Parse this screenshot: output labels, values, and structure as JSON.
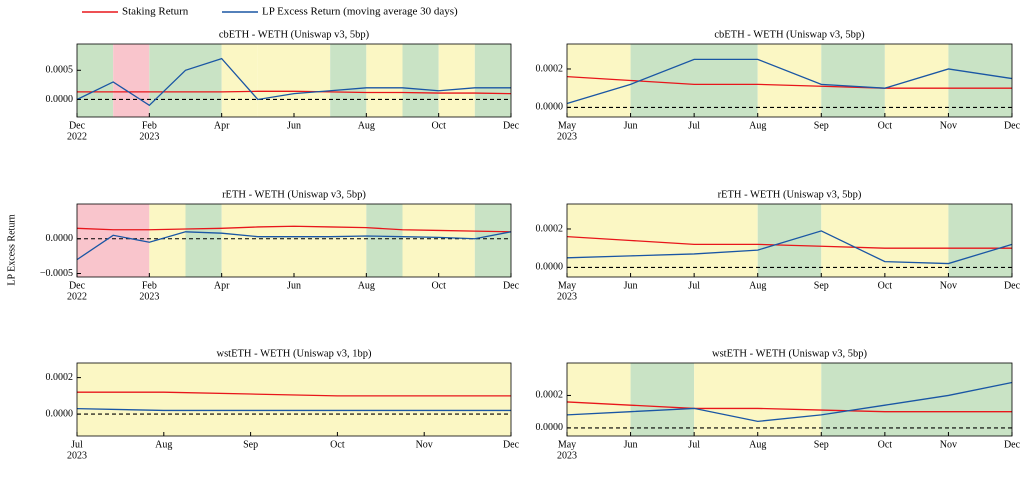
{
  "ylabel": "LP Excess Return",
  "chart_data": [
    {
      "type": "line",
      "title": "cbETH - WETH (Uniswap v3, 5bp)",
      "x": [
        "2022-12",
        "2023-01",
        "2023-02",
        "2023-03",
        "2023-04",
        "2023-05",
        "2023-06",
        "2023-07",
        "2023-08",
        "2023-09",
        "2023-10",
        "2023-11",
        "2023-12"
      ],
      "series": [
        {
          "name": "Staking Return",
          "color": "#e8161b",
          "values": [
            0.00013,
            0.00013,
            0.00013,
            0.00013,
            0.00013,
            0.00014,
            0.00014,
            0.00013,
            0.00012,
            0.00012,
            0.00011,
            0.00011,
            0.0001
          ]
        },
        {
          "name": "LP Excess Return (moving average 30 days)",
          "color": "#1a56a4",
          "values": [
            0.0,
            0.0003,
            -0.0001,
            0.0005,
            0.0007,
            0.0,
            0.0001,
            0.00015,
            0.0002,
            0.0002,
            0.00015,
            0.0002,
            0.0002
          ]
        }
      ],
      "bands": [
        {
          "start": "2022-12",
          "end": "2023-01",
          "color": "#c9e3c5"
        },
        {
          "start": "2023-01",
          "end": "2023-02",
          "color": "#f9c5cc"
        },
        {
          "start": "2023-02",
          "end": "2023-04",
          "color": "#c9e3c5"
        },
        {
          "start": "2023-04",
          "end": "2023-05",
          "color": "#fbf7c4"
        },
        {
          "start": "2023-05",
          "end": "2023-07",
          "color": "#fbf7c4"
        },
        {
          "start": "2023-07",
          "end": "2023-08",
          "color": "#c9e3c5"
        },
        {
          "start": "2023-08",
          "end": "2023-09",
          "color": "#fbf7c4"
        },
        {
          "start": "2023-09",
          "end": "2023-10",
          "color": "#c9e3c5"
        },
        {
          "start": "2023-10",
          "end": "2023-11",
          "color": "#fbf7c4"
        },
        {
          "start": "2023-11",
          "end": "2023-12",
          "color": "#c9e3c5"
        }
      ],
      "xlim": [
        "2022-12",
        "2023-12"
      ],
      "xticks": [
        {
          "value": "2022-12",
          "label": "Dec",
          "sublabel": "2022"
        },
        {
          "value": "2023-02",
          "label": "Feb",
          "sublabel": "2023"
        },
        {
          "value": "2023-04",
          "label": "Apr"
        },
        {
          "value": "2023-06",
          "label": "Jun"
        },
        {
          "value": "2023-08",
          "label": "Aug"
        },
        {
          "value": "2023-10",
          "label": "Oct"
        },
        {
          "value": "2023-12",
          "label": "Dec"
        }
      ],
      "ylim": [
        -0.0003,
        0.00095
      ],
      "yticks": [
        {
          "value": 0,
          "label": "0.0000"
        },
        {
          "value": 0.0005,
          "label": "0.0005"
        }
      ]
    },
    {
      "type": "line",
      "title": "cbETH - WETH (Uniswap v3, 5bp)",
      "x": [
        "2023-05",
        "2023-06",
        "2023-07",
        "2023-08",
        "2023-09",
        "2023-10",
        "2023-11",
        "2023-12"
      ],
      "series": [
        {
          "name": "Staking Return",
          "color": "#e8161b",
          "values": [
            0.00016,
            0.00014,
            0.00012,
            0.00012,
            0.00011,
            0.0001,
            0.0001,
            0.0001
          ]
        },
        {
          "name": "LP Excess Return (moving average 30 days)",
          "color": "#1a56a4",
          "values": [
            2e-05,
            0.00012,
            0.00025,
            0.00025,
            0.00012,
            0.0001,
            0.0002,
            0.00015
          ]
        }
      ],
      "bands": [
        {
          "start": "2023-05",
          "end": "2023-06",
          "color": "#fbf7c4"
        },
        {
          "start": "2023-06",
          "end": "2023-08",
          "color": "#c9e3c5"
        },
        {
          "start": "2023-08",
          "end": "2023-09",
          "color": "#fbf7c4"
        },
        {
          "start": "2023-09",
          "end": "2023-10",
          "color": "#c9e3c5"
        },
        {
          "start": "2023-10",
          "end": "2023-11",
          "color": "#fbf7c4"
        },
        {
          "start": "2023-11",
          "end": "2023-12",
          "color": "#c9e3c5"
        }
      ],
      "xlim": [
        "2023-05",
        "2023-12"
      ],
      "xticks": [
        {
          "value": "2023-05",
          "label": "May",
          "sublabel": "2023"
        },
        {
          "value": "2023-06",
          "label": "Jun"
        },
        {
          "value": "2023-07",
          "label": "Jul"
        },
        {
          "value": "2023-08",
          "label": "Aug"
        },
        {
          "value": "2023-09",
          "label": "Sep"
        },
        {
          "value": "2023-10",
          "label": "Oct"
        },
        {
          "value": "2023-11",
          "label": "Nov"
        },
        {
          "value": "2023-12",
          "label": "Dec"
        }
      ],
      "ylim": [
        -5e-05,
        0.00033
      ],
      "yticks": [
        {
          "value": 0,
          "label": "0.0000"
        },
        {
          "value": 0.0002,
          "label": "0.0002"
        }
      ]
    },
    {
      "type": "line",
      "title": "rETH - WETH (Uniswap v3, 5bp)",
      "x": [
        "2022-12",
        "2023-01",
        "2023-02",
        "2023-03",
        "2023-04",
        "2023-05",
        "2023-06",
        "2023-07",
        "2023-08",
        "2023-09",
        "2023-10",
        "2023-11",
        "2023-12"
      ],
      "series": [
        {
          "name": "Staking Return",
          "color": "#e8161b",
          "values": [
            0.00015,
            0.00013,
            0.00013,
            0.00014,
            0.00015,
            0.00017,
            0.00018,
            0.00017,
            0.00016,
            0.00013,
            0.00012,
            0.00011,
            0.0001
          ]
        },
        {
          "name": "LP Excess Return (moving average 30 days)",
          "color": "#1a56a4",
          "values": [
            -0.0003,
            5e-05,
            -5e-05,
            0.0001,
            8e-05,
            3e-05,
            3e-05,
            3e-05,
            4e-05,
            3e-05,
            2e-05,
            0.0,
            0.0001
          ]
        }
      ],
      "bands": [
        {
          "start": "2022-12",
          "end": "2023-02",
          "color": "#f9c5cc"
        },
        {
          "start": "2023-02",
          "end": "2023-03",
          "color": "#fbf7c4"
        },
        {
          "start": "2023-03",
          "end": "2023-04",
          "color": "#c9e3c5"
        },
        {
          "start": "2023-04",
          "end": "2023-08",
          "color": "#fbf7c4"
        },
        {
          "start": "2023-08",
          "end": "2023-09",
          "color": "#c9e3c5"
        },
        {
          "start": "2023-09",
          "end": "2023-11",
          "color": "#fbf7c4"
        },
        {
          "start": "2023-11",
          "end": "2023-12",
          "color": "#c9e3c5"
        }
      ],
      "xlim": [
        "2022-12",
        "2023-12"
      ],
      "xticks": [
        {
          "value": "2022-12",
          "label": "Dec",
          "sublabel": "2022"
        },
        {
          "value": "2023-02",
          "label": "Feb",
          "sublabel": "2023"
        },
        {
          "value": "2023-04",
          "label": "Apr"
        },
        {
          "value": "2023-06",
          "label": "Jun"
        },
        {
          "value": "2023-08",
          "label": "Aug"
        },
        {
          "value": "2023-10",
          "label": "Oct"
        },
        {
          "value": "2023-12",
          "label": "Dec"
        }
      ],
      "ylim": [
        -0.00055,
        0.0005
      ],
      "yticks": [
        {
          "value": -0.0005,
          "label": "−0.0005"
        },
        {
          "value": 0,
          "label": "0.0000"
        }
      ]
    },
    {
      "type": "line",
      "title": "rETH - WETH (Uniswap v3, 5bp)",
      "x": [
        "2023-05",
        "2023-06",
        "2023-07",
        "2023-08",
        "2023-09",
        "2023-10",
        "2023-11",
        "2023-12"
      ],
      "series": [
        {
          "name": "Staking Return",
          "color": "#e8161b",
          "values": [
            0.00016,
            0.00014,
            0.00012,
            0.00012,
            0.00011,
            0.0001,
            0.0001,
            0.0001
          ]
        },
        {
          "name": "LP Excess Return (moving average 30 days)",
          "color": "#1a56a4",
          "values": [
            5e-05,
            6e-05,
            7e-05,
            9e-05,
            0.00019,
            3e-05,
            2e-05,
            0.00012
          ]
        }
      ],
      "bands": [
        {
          "start": "2023-05",
          "end": "2023-08",
          "color": "#fbf7c4"
        },
        {
          "start": "2023-08",
          "end": "2023-09",
          "color": "#c9e3c5"
        },
        {
          "start": "2023-09",
          "end": "2023-11",
          "color": "#fbf7c4"
        },
        {
          "start": "2023-11",
          "end": "2023-12",
          "color": "#c9e3c5"
        }
      ],
      "xlim": [
        "2023-05",
        "2023-12"
      ],
      "xticks": [
        {
          "value": "2023-05",
          "label": "May",
          "sublabel": "2023"
        },
        {
          "value": "2023-06",
          "label": "Jun"
        },
        {
          "value": "2023-07",
          "label": "Jul"
        },
        {
          "value": "2023-08",
          "label": "Aug"
        },
        {
          "value": "2023-09",
          "label": "Sep"
        },
        {
          "value": "2023-10",
          "label": "Oct"
        },
        {
          "value": "2023-11",
          "label": "Nov"
        },
        {
          "value": "2023-12",
          "label": "Dec"
        }
      ],
      "ylim": [
        -5e-05,
        0.00033
      ],
      "yticks": [
        {
          "value": 0,
          "label": "0.0000"
        },
        {
          "value": 0.0002,
          "label": "0.0002"
        }
      ]
    },
    {
      "type": "line",
      "title": "wstETH - WETH (Uniswap v3, 1bp)",
      "x": [
        "2023-07",
        "2023-08",
        "2023-09",
        "2023-10",
        "2023-11",
        "2023-12"
      ],
      "series": [
        {
          "name": "Staking Return",
          "color": "#e8161b",
          "values": [
            0.00012,
            0.00012,
            0.00011,
            0.0001,
            0.0001,
            0.0001
          ]
        },
        {
          "name": "LP Excess Return (moving average 30 days)",
          "color": "#1a56a4",
          "values": [
            3e-05,
            2e-05,
            2e-05,
            2e-05,
            2e-05,
            2e-05
          ]
        }
      ],
      "bands": [
        {
          "start": "2023-07",
          "end": "2023-12",
          "color": "#fbf7c4"
        }
      ],
      "xlim": [
        "2023-07",
        "2023-12"
      ],
      "xticks": [
        {
          "value": "2023-07",
          "label": "Jul",
          "sublabel": "2023"
        },
        {
          "value": "2023-08",
          "label": "Aug"
        },
        {
          "value": "2023-09",
          "label": "Sep"
        },
        {
          "value": "2023-10",
          "label": "Oct"
        },
        {
          "value": "2023-11",
          "label": "Nov"
        },
        {
          "value": "2023-12",
          "label": "Dec"
        }
      ],
      "ylim": [
        -0.00012,
        0.00028
      ],
      "yticks": [
        {
          "value": 0,
          "label": "0.0000"
        },
        {
          "value": 0.0002,
          "label": "0.0002"
        }
      ]
    },
    {
      "type": "line",
      "title": "wstETH - WETH (Uniswap v3, 5bp)",
      "x": [
        "2023-05",
        "2023-06",
        "2023-07",
        "2023-08",
        "2023-09",
        "2023-10",
        "2023-11",
        "2023-12"
      ],
      "series": [
        {
          "name": "Staking Return",
          "color": "#e8161b",
          "values": [
            0.00016,
            0.00014,
            0.00012,
            0.00012,
            0.00011,
            0.0001,
            0.0001,
            0.0001
          ]
        },
        {
          "name": "LP Excess Return (moving average 30 days)",
          "color": "#1a56a4",
          "values": [
            8e-05,
            0.0001,
            0.00012,
            4e-05,
            8e-05,
            0.00014,
            0.0002,
            0.00028
          ]
        }
      ],
      "bands": [
        {
          "start": "2023-05",
          "end": "2023-06",
          "color": "#fbf7c4"
        },
        {
          "start": "2023-06",
          "end": "2023-07",
          "color": "#c9e3c5"
        },
        {
          "start": "2023-07",
          "end": "2023-09",
          "color": "#fbf7c4"
        },
        {
          "start": "2023-09",
          "end": "2023-12",
          "color": "#c9e3c5"
        }
      ],
      "xlim": [
        "2023-05",
        "2023-12"
      ],
      "xticks": [
        {
          "value": "2023-05",
          "label": "May",
          "sublabel": "2023"
        },
        {
          "value": "2023-06",
          "label": "Jun"
        },
        {
          "value": "2023-07",
          "label": "Jul"
        },
        {
          "value": "2023-08",
          "label": "Aug"
        },
        {
          "value": "2023-09",
          "label": "Sep"
        },
        {
          "value": "2023-10",
          "label": "Oct"
        },
        {
          "value": "2023-11",
          "label": "Nov"
        },
        {
          "value": "2023-12",
          "label": "Dec"
        }
      ],
      "ylim": [
        -5e-05,
        0.0004
      ],
      "yticks": [
        {
          "value": 0,
          "label": "0.0000"
        },
        {
          "value": 0.0002,
          "label": "0.0002"
        }
      ]
    }
  ]
}
